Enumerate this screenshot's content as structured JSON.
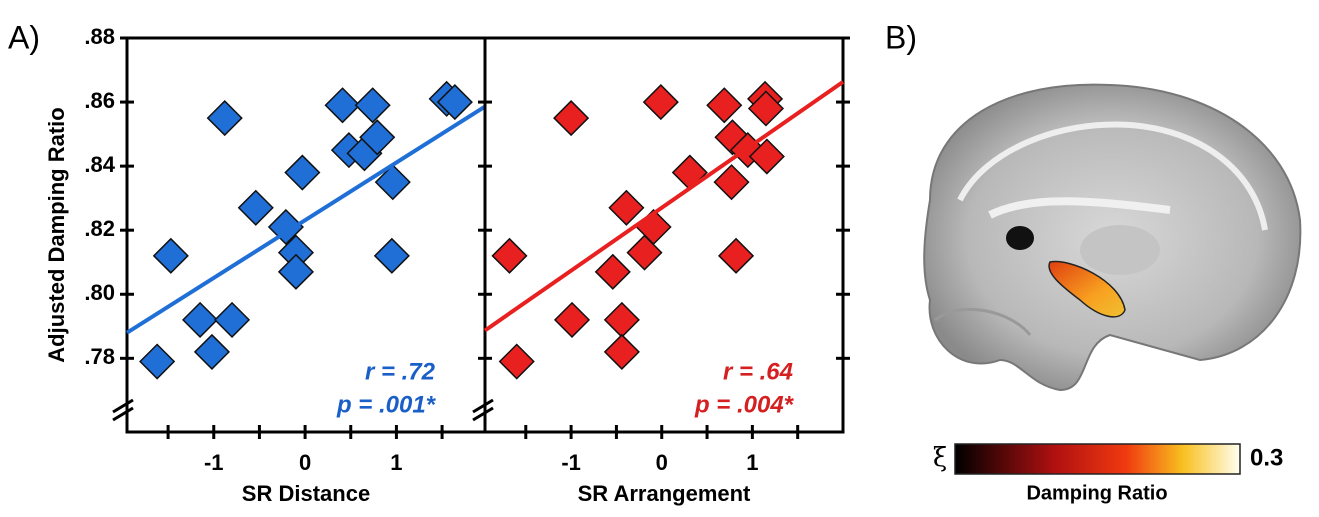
{
  "panel_labels": [
    "A)",
    "B)"
  ],
  "chart_data": [
    {
      "type": "scatter",
      "y_label": "Adjusted Damping Ratio",
      "x_label": "SR Distance",
      "xlim": [
        -1.95,
        1.97
      ],
      "ylim": [
        0.757,
        0.88
      ],
      "xticks": [
        -1,
        0,
        1
      ],
      "x_minor_ticks": [
        -1.5,
        -0.5,
        0.5,
        1.5
      ],
      "yticks": [
        {
          "value": 0.78,
          "label": ".78"
        },
        {
          "value": 0.8,
          "label": ".80"
        },
        {
          "value": 0.82,
          "label": ".82"
        },
        {
          "value": 0.84,
          "label": ".84"
        },
        {
          "value": 0.86,
          "label": ".86"
        },
        {
          "value": 0.88,
          "label": ".88"
        }
      ],
      "color": "#1f6fd6",
      "text_color": "#1a5fc8",
      "x": [
        -1.62,
        -1.47,
        -1.15,
        -1.02,
        -0.8,
        -0.88,
        -0.54,
        -0.21,
        -0.1,
        -0.1,
        -0.03,
        0.41,
        0.48,
        0.65,
        0.74,
        0.79,
        0.96,
        0.95,
        1.55,
        1.64
      ],
      "values": [
        0.779,
        0.812,
        0.792,
        0.782,
        0.792,
        0.855,
        0.827,
        0.821,
        0.813,
        0.807,
        0.838,
        0.859,
        0.845,
        0.844,
        0.859,
        0.849,
        0.835,
        0.812,
        0.861,
        0.86
      ],
      "fit": {
        "x": [
          -1.95,
          1.97
        ],
        "values": [
          0.788,
          0.8586
        ]
      },
      "annotations": [
        "r = .72",
        "p = .001*"
      ]
    },
    {
      "type": "scatter",
      "x_label": "SR Arrangement",
      "xlim": [
        -1.95,
        2.0
      ],
      "ylim": [
        0.757,
        0.88
      ],
      "xticks": [
        -1,
        0,
        1
      ],
      "x_minor_ticks": [
        -1.5,
        -0.5,
        0.5,
        1.5
      ],
      "yticks": [
        0.78,
        0.8,
        0.82,
        0.84,
        0.86,
        0.88
      ],
      "color": "#e82020",
      "text_color": "#d42020",
      "x": [
        -1.68,
        -1.6,
        -1.0,
        -0.99,
        -0.54,
        -0.39,
        -0.44,
        -0.44,
        -0.19,
        -0.09,
        -0.01,
        0.31,
        0.69,
        0.77,
        0.78,
        0.82,
        0.95,
        1.14,
        1.15,
        1.16
      ],
      "values": [
        0.812,
        0.779,
        0.855,
        0.792,
        0.807,
        0.827,
        0.792,
        0.782,
        0.813,
        0.821,
        0.86,
        0.838,
        0.859,
        0.835,
        0.849,
        0.812,
        0.845,
        0.861,
        0.858,
        0.843
      ],
      "fit": {
        "x": [
          -1.95,
          2.0
        ],
        "values": [
          0.7887,
          0.8663
        ]
      },
      "annotations": [
        "r = .64",
        "p = .004*"
      ]
    }
  ],
  "colorbar": {
    "symbol": "ξ",
    "max": 0.3,
    "label": "Damping Ratio"
  }
}
